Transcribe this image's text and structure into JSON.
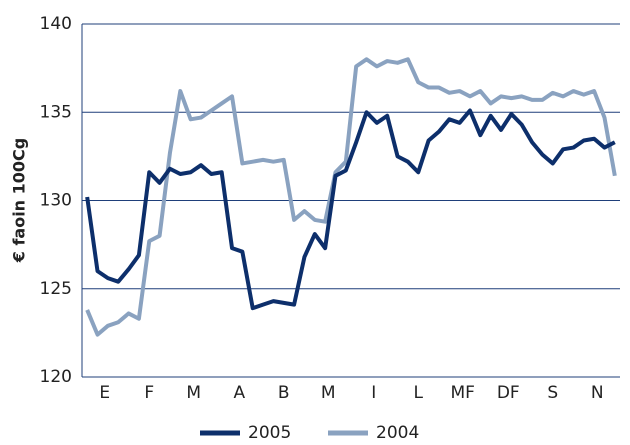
{
  "chart_data": {
    "type": "line",
    "y_label": "€ faoin 100Cg",
    "x": [
      0.5,
      1.5,
      2.5,
      3.5,
      4.5,
      5.5,
      6.5,
      7.5,
      8.5,
      9.5,
      10.5,
      11.5,
      12.5,
      13.5,
      14.5,
      15.5,
      16.5,
      17.5,
      18.5,
      19.5,
      20.5,
      21.5,
      22.5,
      23.5,
      24.5,
      25.5,
      26.5,
      27.5,
      28.5,
      29.5,
      30.5,
      31.5,
      32.5,
      33.5,
      34.5,
      35.5,
      36.5,
      37.5,
      38.5,
      39.5,
      40.5,
      41.5,
      42.5,
      43.5,
      44.5,
      45.5,
      46.5,
      47.5,
      48.5,
      49.5,
      50.5,
      51.5
    ],
    "series": [
      {
        "name": "2005",
        "color": "#0d2f6b",
        "values": [
          130.2,
          126.0,
          125.6,
          125.4,
          126.1,
          126.9,
          131.6,
          131.0,
          131.8,
          131.5,
          131.6,
          132.0,
          131.5,
          131.6,
          127.3,
          127.1,
          123.9,
          124.1,
          124.3,
          124.2,
          124.1,
          126.8,
          128.1,
          127.3,
          131.4,
          131.7,
          133.3,
          135.0,
          134.4,
          134.8,
          132.5,
          132.2,
          131.6,
          133.4,
          133.9,
          134.6,
          134.4,
          135.1,
          133.7,
          134.8,
          134.0,
          134.9,
          134.3,
          133.3,
          132.6,
          132.1,
          132.9,
          133.0,
          133.4,
          133.5,
          133.0,
          133.3
        ]
      },
      {
        "name": "2004",
        "color": "#8aa2c0",
        "values": [
          123.8,
          122.4,
          122.9,
          123.1,
          123.6,
          123.3,
          127.7,
          128.0,
          132.7,
          136.2,
          134.6,
          134.7,
          135.1,
          135.5,
          135.9,
          132.1,
          132.2,
          132.3,
          132.2,
          132.3,
          128.9,
          129.4,
          128.9,
          128.8,
          131.6,
          132.2,
          137.6,
          138.0,
          137.6,
          137.9,
          137.8,
          138.0,
          136.7,
          136.4,
          136.4,
          136.1,
          136.2,
          135.9,
          136.2,
          135.5,
          135.9,
          135.8,
          135.9,
          135.7,
          135.7,
          136.1,
          135.9,
          136.2,
          136.0,
          136.2,
          134.7,
          131.4
        ]
      }
    ],
    "xlim": [
      0,
      52
    ],
    "xticks": [
      {
        "value": 2.2,
        "label": "E"
      },
      {
        "value": 6.5,
        "label": "F"
      },
      {
        "value": 10.8,
        "label": "M"
      },
      {
        "value": 15.2,
        "label": "A"
      },
      {
        "value": 19.5,
        "label": "B"
      },
      {
        "value": 23.8,
        "label": "M"
      },
      {
        "value": 28.2,
        "label": "I"
      },
      {
        "value": 32.5,
        "label": "L"
      },
      {
        "value": 36.8,
        "label": "MF"
      },
      {
        "value": 41.2,
        "label": "DF"
      },
      {
        "value": 45.5,
        "label": "S"
      },
      {
        "value": 49.8,
        "label": "N"
      }
    ],
    "ylim": [
      120,
      140
    ],
    "yticks": [
      120,
      125,
      130,
      135,
      140
    ],
    "grid": true
  }
}
